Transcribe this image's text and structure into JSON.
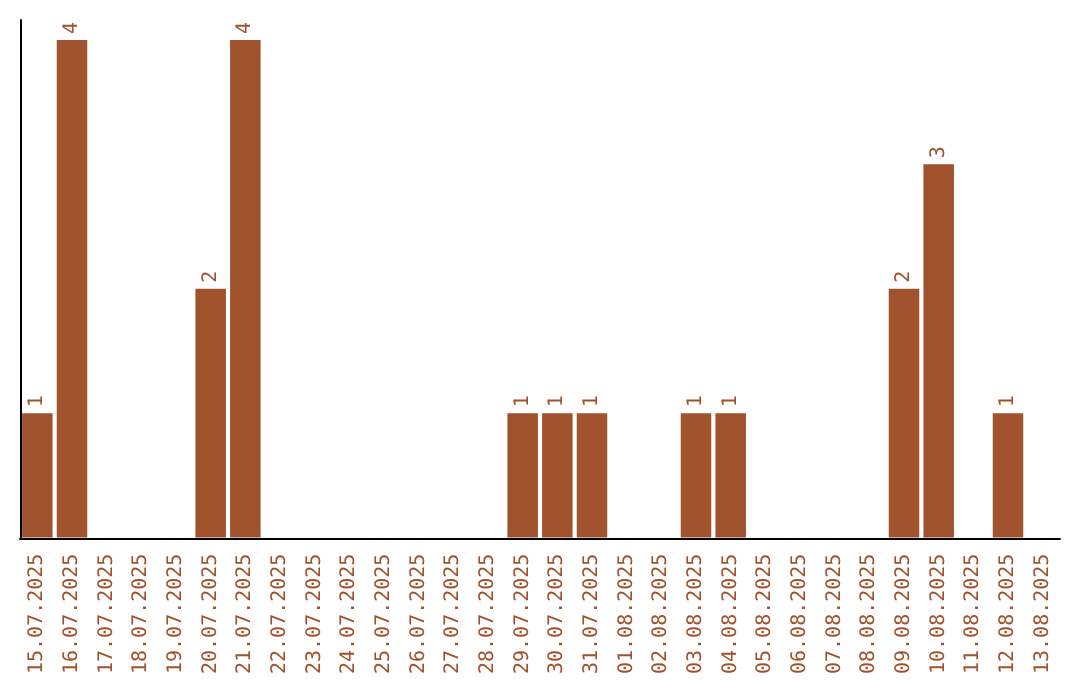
{
  "chart_data": {
    "type": "bar",
    "categories": [
      "15.07.2025",
      "16.07.2025",
      "17.07.2025",
      "18.07.2025",
      "19.07.2025",
      "20.07.2025",
      "21.07.2025",
      "22.07.2025",
      "23.07.2025",
      "24.07.2025",
      "25.07.2025",
      "26.07.2025",
      "27.07.2025",
      "28.07.2025",
      "29.07.2025",
      "30.07.2025",
      "31.07.2025",
      "01.08.2025",
      "02.08.2025",
      "03.08.2025",
      "04.08.2025",
      "05.08.2025",
      "06.08.2025",
      "07.08.2025",
      "08.08.2025",
      "09.08.2025",
      "10.08.2025",
      "11.08.2025",
      "12.08.2025",
      "13.08.2025"
    ],
    "values": [
      1,
      4,
      0,
      0,
      0,
      2,
      4,
      0,
      0,
      0,
      0,
      0,
      0,
      0,
      1,
      1,
      1,
      0,
      0,
      1,
      1,
      0,
      0,
      0,
      0,
      2,
      3,
      0,
      1,
      0
    ],
    "value_labels": [
      "1",
      "4",
      null,
      null,
      null,
      "2",
      "4",
      null,
      null,
      null,
      null,
      null,
      null,
      null,
      "1",
      "1",
      "1",
      null,
      null,
      "1",
      "1",
      null,
      null,
      null,
      null,
      "2",
      "3",
      null,
      "1",
      null
    ],
    "color": "#a0522d",
    "grid": false,
    "tick_labels": "x"
  }
}
